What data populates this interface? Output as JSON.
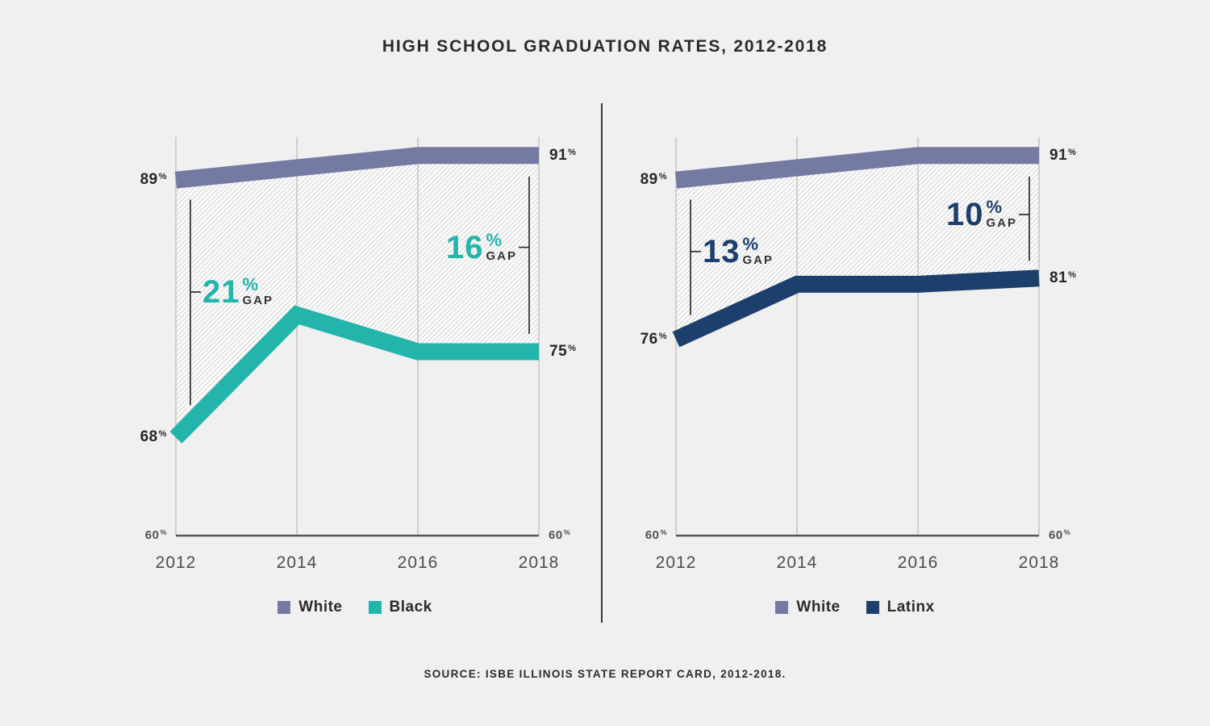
{
  "title": "HIGH SCHOOL GRADUATION RATES, 2012-2018",
  "source": "SOURCE: ISBE ILLINOIS STATE REPORT CARD, 2012-2018.",
  "colors": {
    "background": "#f0f0f0",
    "title_text": "#2a2a2a",
    "value_text": "#272727",
    "axis_text": "#4d4d4d",
    "grid_line": "#c7c7c7",
    "axis_line": "#565656",
    "marker_line": "#2d2d2d",
    "gap_label_text": "#333333",
    "hatch_background": "#fcfcfc",
    "hatch_stripe": "#d9d9d9",
    "divider": "#3b3b3b",
    "white_series": "#747aa2",
    "black_series": "#23b4ab",
    "latinx_series": "#1d3f6b"
  },
  "chart_data": [
    {
      "type": "area",
      "panel": "white-vs-black",
      "x": [
        2012,
        2014,
        2016,
        2018
      ],
      "ylim": [
        60,
        92
      ],
      "grid": true,
      "legend_position": "bottom",
      "baseline_label": {
        "num": "60",
        "suffix": "%"
      },
      "series": [
        {
          "name": "White",
          "color": "#747aa2",
          "values": [
            89,
            90,
            91,
            91
          ],
          "start_label": {
            "num": "89",
            "suffix": "%"
          },
          "end_label": {
            "num": "91",
            "suffix": "%"
          }
        },
        {
          "name": "Black",
          "color": "#23b4ab",
          "values": [
            68,
            78,
            75,
            75
          ],
          "start_label": {
            "num": "68",
            "suffix": "%"
          },
          "end_label": {
            "num": "75",
            "suffix": "%"
          }
        }
      ],
      "gaps": [
        {
          "position": "start",
          "num": "21",
          "suffix": "%",
          "label": "GAP"
        },
        {
          "position": "end",
          "num": "16",
          "suffix": "%",
          "label": "GAP"
        }
      ]
    },
    {
      "type": "area",
      "panel": "white-vs-latinx",
      "x": [
        2012,
        2014,
        2016,
        2018
      ],
      "ylim": [
        60,
        92
      ],
      "grid": true,
      "legend_position": "bottom",
      "baseline_label": {
        "num": "60",
        "suffix": "%"
      },
      "series": [
        {
          "name": "White",
          "color": "#747aa2",
          "values": [
            89,
            90,
            91,
            91
          ],
          "start_label": {
            "num": "89",
            "suffix": "%"
          },
          "end_label": {
            "num": "91",
            "suffix": "%"
          }
        },
        {
          "name": "Latinx",
          "color": "#1d3f6b",
          "values": [
            76,
            80.5,
            80.5,
            81
          ],
          "start_label": {
            "num": "76",
            "suffix": "%"
          },
          "end_label": {
            "num": "81",
            "suffix": "%"
          }
        }
      ],
      "gaps": [
        {
          "position": "start",
          "num": "13",
          "suffix": "%",
          "label": "GAP"
        },
        {
          "position": "end",
          "num": "10",
          "suffix": "%",
          "label": "GAP"
        }
      ]
    }
  ]
}
